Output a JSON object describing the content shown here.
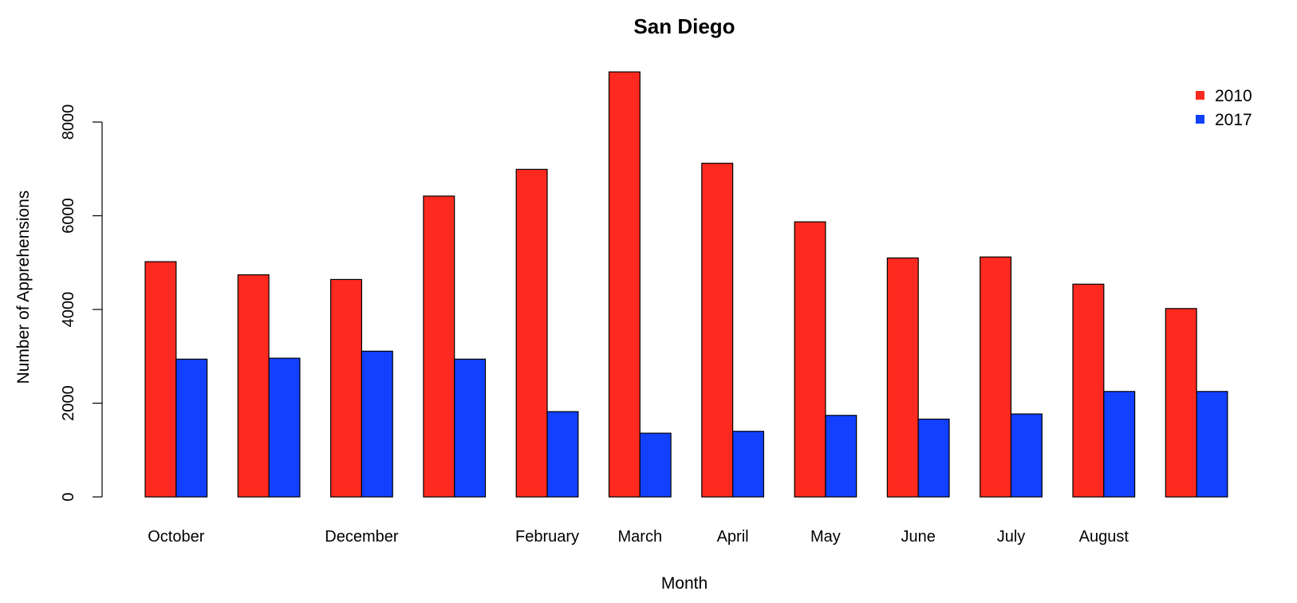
{
  "chart_data": {
    "type": "bar",
    "title": "San Diego",
    "xlabel": "Month",
    "ylabel": "Number of Apprehensions",
    "ylim": [
      0,
      9100
    ],
    "yticks": [
      0,
      2000,
      4000,
      6000,
      8000
    ],
    "grid": false,
    "legend_position": "top-right",
    "categories": [
      "October",
      "",
      "December",
      "",
      "February",
      "March",
      "April",
      "May",
      "June",
      "July",
      "August",
      ""
    ],
    "series": [
      {
        "name": "2010",
        "color": "#ff2a1f",
        "values": [
          5020,
          4740,
          4640,
          6420,
          6990,
          9070,
          7120,
          5870,
          5100,
          5120,
          4540,
          4020
        ]
      },
      {
        "name": "2017",
        "color": "#1240ff",
        "values": [
          2940,
          2960,
          3110,
          2940,
          1820,
          1360,
          1400,
          1740,
          1660,
          1770,
          2250,
          2250
        ]
      }
    ]
  }
}
